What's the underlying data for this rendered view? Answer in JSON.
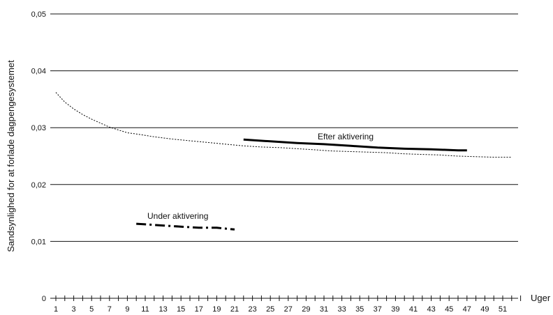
{
  "chart_data": {
    "type": "line",
    "ylabel": "Sandsynlighed for at forlade dagpengesystemet",
    "xunit_label": "Uger",
    "xlim": [
      1,
      53
    ],
    "ylim": [
      0,
      0.05
    ],
    "x_ticks": [
      1,
      3,
      5,
      7,
      9,
      11,
      13,
      15,
      17,
      19,
      21,
      23,
      25,
      27,
      29,
      31,
      33,
      35,
      37,
      39,
      41,
      43,
      45,
      47,
      49,
      51
    ],
    "x_tick_labels": [
      "1",
      "3",
      "5",
      "7",
      "9",
      "11",
      "13",
      "15",
      "17",
      "19",
      "21",
      "23",
      "25",
      "27",
      "29",
      "31",
      "33",
      "35",
      "37",
      "39",
      "41",
      "43",
      "45",
      "47",
      "49",
      "51"
    ],
    "y_ticks": [
      0,
      0.01,
      0.02,
      0.03,
      0.04,
      0.05
    ],
    "y_tick_labels": [
      "0",
      "0,01",
      "0,02",
      "0,03",
      "0,04",
      "0,05"
    ],
    "grid": "horizontal",
    "series": [
      {
        "label_text": "",
        "style": "dotted",
        "x": [
          1,
          2,
          3,
          4,
          5,
          6,
          7,
          8,
          9,
          10,
          12,
          14,
          16,
          18,
          20,
          22,
          24,
          26,
          28,
          30,
          32,
          34,
          36,
          38,
          40,
          42,
          44,
          46,
          48,
          50,
          52
        ],
        "y": [
          0.0362,
          0.0345,
          0.0333,
          0.0323,
          0.0315,
          0.0308,
          0.0301,
          0.0296,
          0.0291,
          0.0289,
          0.0284,
          0.028,
          0.0277,
          0.0274,
          0.0271,
          0.0268,
          0.0266,
          0.0265,
          0.0263,
          0.0261,
          0.0259,
          0.0258,
          0.0257,
          0.0256,
          0.0254,
          0.0253,
          0.0252,
          0.025,
          0.0249,
          0.0248,
          0.0248
        ]
      },
      {
        "label_text": "Efter aktivering",
        "style": "solid",
        "x": [
          22,
          25,
          28,
          31,
          34,
          37,
          40,
          43,
          46,
          47
        ],
        "y": [
          0.0279,
          0.0276,
          0.0273,
          0.0271,
          0.0268,
          0.0265,
          0.0263,
          0.0262,
          0.026,
          0.026
        ]
      },
      {
        "label_text": "Under aktivering",
        "style": "dashdot",
        "x": [
          10,
          11,
          13,
          15,
          17,
          19,
          21
        ],
        "y": [
          0.0131,
          0.013,
          0.0128,
          0.0126,
          0.0124,
          0.0124,
          0.0121
        ]
      }
    ]
  }
}
